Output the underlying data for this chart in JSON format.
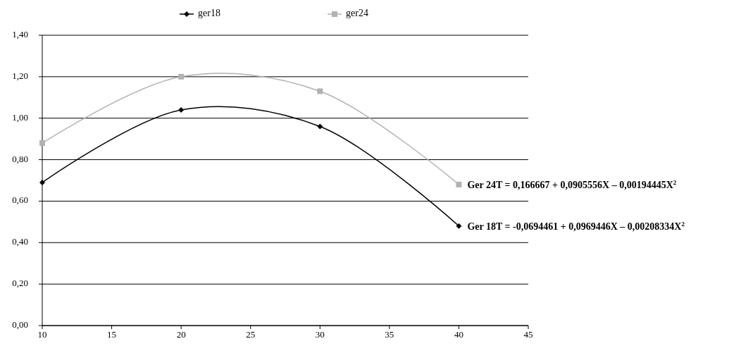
{
  "chart_data": {
    "type": "line",
    "x": [
      10,
      20,
      30,
      40
    ],
    "series": [
      {
        "name": "ger18",
        "color": "#000000",
        "marker": "diamond",
        "values": [
          0.69,
          1.04,
          0.96,
          0.48
        ]
      },
      {
        "name": "ger24",
        "color": "#b2b2b2",
        "marker": "square",
        "values": [
          0.88,
          1.2,
          1.13,
          0.68
        ]
      }
    ],
    "xlim": [
      10,
      45
    ],
    "xticks": [
      10,
      15,
      20,
      25,
      30,
      35,
      40,
      45
    ],
    "ylim": [
      0,
      1.4
    ],
    "yticks": [
      {
        "value": 0,
        "label": "0,00"
      },
      {
        "value": 0.2,
        "label": "0,20"
      },
      {
        "value": 0.4,
        "label": "0,40"
      },
      {
        "value": 0.6,
        "label": "0,60"
      },
      {
        "value": 0.8,
        "label": "0,80"
      },
      {
        "value": 1,
        "label": "1,00"
      },
      {
        "value": 1.2,
        "label": "1,20"
      },
      {
        "value": 1.4,
        "label": "1,40"
      }
    ],
    "grid": "y",
    "legend": "top",
    "annotations": [
      {
        "text": "Ger 24T = 0,166667 + 0,0905556X – 0,00194445X$^{2}$",
        "x": 40,
        "y": 0.68
      },
      {
        "text": "Ger 18T = -0,0694461 + 0,0969446X – 0,00208334X$^{2}$",
        "x": 40,
        "y": 0.48
      }
    ]
  }
}
